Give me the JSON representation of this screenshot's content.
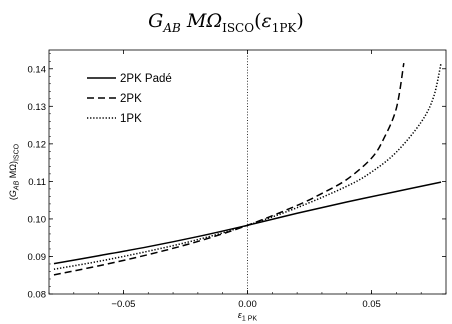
{
  "chart_data": {
    "type": "line",
    "title": "G_AB MΩ_ISCO(ε_1PK)",
    "xlabel": "ε_1 PK",
    "ylabel": "(G_AB MΩ)_ISCO",
    "xlim": [
      -0.08,
      0.08
    ],
    "ylim": [
      0.08,
      0.145
    ],
    "xticks": [
      -0.05,
      0.0,
      0.05
    ],
    "xtick_labels": [
      "−0.05",
      "0.00",
      "0.05"
    ],
    "yticks": [
      0.08,
      0.09,
      0.1,
      0.11,
      0.12,
      0.13,
      0.14
    ],
    "ytick_labels": [
      "0.08",
      "0.09",
      "0.10",
      "0.11",
      "0.12",
      "0.13",
      "0.14"
    ],
    "grid": false,
    "legend_position": "top-left",
    "vertical_reference_line_x": 0.0,
    "series": [
      {
        "name": "2PK Padé",
        "style": "solid",
        "x": [
          -0.078,
          -0.06,
          -0.04,
          -0.02,
          0.0,
          0.02,
          0.04,
          0.06,
          0.078
        ],
        "y": [
          0.0881,
          0.0902,
          0.0926,
          0.0953,
          0.0983,
          0.1015,
          0.1045,
          0.1073,
          0.1098
        ]
      },
      {
        "name": "2PK",
        "style": "dashed",
        "x": [
          -0.078,
          -0.06,
          -0.04,
          -0.02,
          0.0,
          0.02,
          0.03,
          0.04,
          0.05,
          0.055,
          0.06,
          0.063
        ],
        "y": [
          0.0851,
          0.0875,
          0.0905,
          0.094,
          0.0983,
          0.1036,
          0.1068,
          0.1105,
          0.1162,
          0.1215,
          0.1295,
          0.1415
        ]
      },
      {
        "name": "1PK",
        "style": "dotted",
        "x": [
          -0.078,
          -0.06,
          -0.04,
          -0.02,
          0.0,
          0.02,
          0.04,
          0.05,
          0.06,
          0.07,
          0.075,
          0.078
        ],
        "y": [
          0.0866,
          0.0887,
          0.0914,
          0.0945,
          0.0983,
          0.103,
          0.1087,
          0.1125,
          0.1178,
          0.1258,
          0.1325,
          0.1415
        ]
      }
    ]
  }
}
